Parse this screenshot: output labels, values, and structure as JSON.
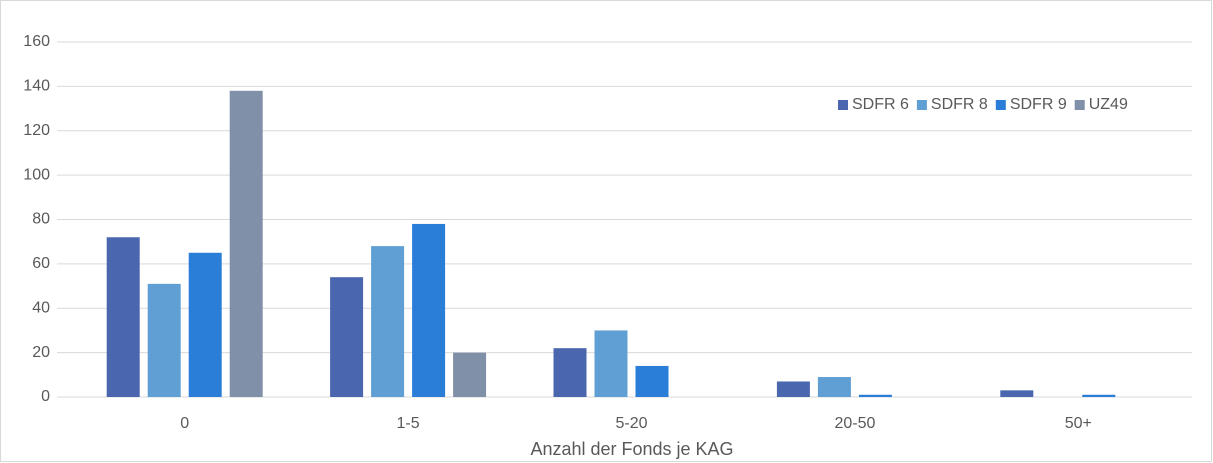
{
  "chart_data": {
    "type": "bar",
    "x_label": "Anzahl der Fonds je KAG",
    "categories": [
      "0",
      "1-5",
      "5-20",
      "20-50",
      "50+"
    ],
    "series": [
      {
        "name": "SDFR 6",
        "color": "#4a66ae",
        "values": [
          72,
          54,
          22,
          7,
          3
        ]
      },
      {
        "name": "SDFR 8",
        "color": "#5f9fd4",
        "values": [
          51,
          68,
          30,
          9,
          0
        ]
      },
      {
        "name": "SDFR 9",
        "color": "#2a7ed8",
        "values": [
          65,
          78,
          14,
          1,
          1
        ]
      },
      {
        "name": "UZ49",
        "color": "#8090a8",
        "values": [
          138,
          20,
          0,
          0,
          0
        ]
      }
    ],
    "ylim": [
      0,
      160
    ],
    "yticks": [
      0,
      20,
      40,
      60,
      80,
      100,
      120,
      140,
      160
    ],
    "grid": true,
    "legend": "upper right"
  }
}
